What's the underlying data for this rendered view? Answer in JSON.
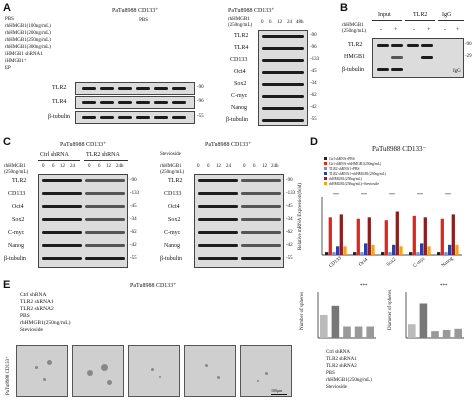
{
  "panels": {
    "A": {
      "label": "A",
      "title_left": "PaTu8988 CD133⁺",
      "rows_left": [
        "PBS",
        "rhHMGB1(100ng/mL)",
        "rhHMGB1(200ng/mL)",
        "rhHMGB1(250ng/mL)",
        "rhHMGB1(300ng/mL)",
        "iHMGB1 shRNA1",
        "iHMGB1⁺",
        "EP"
      ],
      "blots_left": [
        "TLR2",
        "TLR4",
        "β-tubulin"
      ],
      "kda_left": [
        "-90",
        "-96",
        "-55"
      ],
      "title_right": "PaTu8988 CD133⁺",
      "treat_right": "rhHMGB1 (250ng/mL)",
      "time_right": [
        "0",
        "6",
        "12",
        "24",
        "48h"
      ],
      "blots_right": [
        "TLR2",
        "TLR4",
        "CD133",
        "Oct4",
        "Sox2",
        "C-myc",
        "Nanog",
        "β-tubulin"
      ],
      "kda_right": [
        "-90",
        "-96",
        "-133",
        "-45",
        "-34",
        "-62",
        "-42",
        "-55"
      ]
    },
    "B": {
      "label": "B",
      "columns": [
        "Input",
        "TLR2",
        "IgG"
      ],
      "treat": "rhHMGB1 (250ng/mL)",
      "signs": [
        "-",
        "+",
        "-",
        "+",
        "-",
        "+"
      ],
      "blots": [
        "TLR2",
        "HMGB1",
        "β-tubulin"
      ],
      "kda": [
        "-90",
        "-29",
        "-55"
      ],
      "igg": "IgG"
    },
    "C": {
      "label": "C",
      "title_left": "PaTu8988 CD133⁺",
      "groups_left": [
        "Ctrl shRNA",
        "TLR2 shRNA"
      ],
      "treat_left": "rhHMGB1 (250ng/mL)",
      "time_left": [
        "0",
        "6",
        "12",
        "24",
        "0",
        "6",
        "12",
        "24h"
      ],
      "blots_left": [
        "TLR2",
        "CD133",
        "Oct4",
        "Sox2",
        "C-myc",
        "Nanog",
        "β-tubulin"
      ],
      "kda_left": [
        "-90",
        "-133",
        "-45",
        "-34",
        "-62",
        "-42",
        "-55"
      ],
      "title_right": "PaTu8988 CD133⁺",
      "stevioside": "Stevioside",
      "treat_right": "rhHMGB1 (250ng/mL)",
      "time_right": [
        "0",
        "6",
        "12",
        "24",
        "0",
        "6",
        "12",
        "24h"
      ],
      "blots_right": [
        "TLR2",
        "CD133",
        "Oct4",
        "Sox2",
        "C-myc",
        "Nanog",
        "β-tubulin"
      ],
      "kda_right": [
        "-90",
        "-133",
        "-45",
        "-34",
        "-62",
        "-42",
        "-55"
      ]
    },
    "D": {
      "label": "D",
      "title": "PaTu8988 CD133⁻",
      "ylabel": "Relative mRNA Expression(fold)",
      "legend": [
        "Ctrl shRNA+PBS",
        "Ctrl shRNA+rhHMGB1(250ng/mL)",
        "TLR2 shRNA1+PBS",
        "TLR2 shRNA1+rhHMGB1(250ng/mL)",
        "rhHMGB1(250ng/mL)",
        "rhHMGB1(250ng/mL)+Stevioside"
      ],
      "stars": "***"
    },
    "E": {
      "label": "E",
      "title": "PaTu8988 CD133⁺",
      "rows": [
        "Ctrl shRNA",
        "TLR2 shRNA1",
        "TLR2 shRNA2",
        "PBS",
        "rhHMGB1(250ng/mL)",
        "Stevioside"
      ],
      "cell_label": "PaTu8988 CD133⁺",
      "scale": "100μm",
      "bar1_ylabel": "Number of spheres",
      "bar2_ylabel": "Diameter of spheres",
      "bar_rows": [
        "Ctrl shRNA",
        "TLR2 shRNA1",
        "TLR2 shRNA2",
        "PBS",
        "rhHMGB1(250ng/mL)",
        "Stevioside"
      ],
      "stars": "***"
    }
  },
  "chart_data": [
    {
      "type": "bar",
      "title": "PaTu8988 CD133⁻",
      "ylabel": "Relative mRNA Expression(fold)",
      "categories": [
        "CD133",
        "Oct4",
        "Sox2",
        "C-myc",
        "Nanog"
      ],
      "ylim": [
        0,
        20
      ],
      "series": [
        {
          "name": "Ctrl shRNA+PBS",
          "color": "#222222",
          "values": [
            1,
            1,
            1,
            1,
            1
          ]
        },
        {
          "name": "Ctrl shRNA+rhHMGB1(250ng/mL)",
          "color": "#e0261b",
          "values": [
            13,
            12.5,
            12,
            13.5,
            12.5
          ]
        },
        {
          "name": "TLR2 shRNA1+PBS",
          "color": "#7b8fc4",
          "values": [
            1,
            1,
            1,
            1,
            1
          ]
        },
        {
          "name": "TLR2 shRNA1+rhHMGB1(250ng/mL)",
          "color": "#2f3fa0",
          "values": [
            3,
            4,
            3.5,
            4,
            3.5
          ]
        },
        {
          "name": "rhHMGB1(250ng/mL)",
          "color": "#8b1e1e",
          "values": [
            14,
            13,
            15,
            13,
            14
          ]
        },
        {
          "name": "rhHMGB1(250ng/mL)+Stevioside",
          "color": "#f2a11c",
          "values": [
            3,
            3.5,
            3,
            3,
            3.5
          ]
        }
      ]
    },
    {
      "type": "bar",
      "ylabel": "Number of spheres",
      "categories": [
        "1",
        "2",
        "3",
        "4",
        "5"
      ],
      "ylim": [
        0,
        40
      ],
      "series": [
        {
          "values": [
            20,
            28,
            10,
            10,
            10
          ]
        }
      ]
    },
    {
      "type": "bar",
      "ylabel": "Diameter of spheres",
      "categories": [
        "1",
        "2",
        "3",
        "4",
        "5"
      ],
      "ylim": [
        0,
        40
      ],
      "series": [
        {
          "values": [
            12,
            30,
            6,
            7,
            8
          ]
        }
      ]
    }
  ]
}
